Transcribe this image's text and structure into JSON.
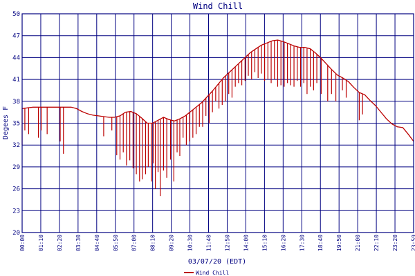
{
  "chart_data": {
    "type": "line",
    "title": "Wind Chill",
    "xlabel": "03/07/20 (EDT)",
    "ylabel": "Degees F",
    "ylim": [
      20,
      50
    ],
    "yticks": [
      "20",
      "23",
      "26",
      "29",
      "32",
      "35",
      "38",
      "41",
      "44",
      "47",
      "50"
    ],
    "xlim": [
      0,
      1440
    ],
    "xticks": [
      "00:00",
      "01:10",
      "02:20",
      "03:30",
      "04:40",
      "05:50",
      "07:00",
      "08:10",
      "09:20",
      "10:30",
      "11:40",
      "12:50",
      "14:00",
      "15:10",
      "16:20",
      "17:30",
      "18:40",
      "19:50",
      "21:00",
      "22:10",
      "23:20",
      "23:59"
    ],
    "grid": true,
    "legend_position": "bottom-center",
    "colors": {
      "series": "#bb0000",
      "grid": "#000080",
      "text": "#000080"
    },
    "series": [
      {
        "name": "Wind Chill",
        "x": [
          0,
          20,
          40,
          60,
          80,
          100,
          120,
          140,
          160,
          180,
          200,
          220,
          240,
          260,
          280,
          300,
          320,
          340,
          360,
          380,
          400,
          420,
          440,
          460,
          480,
          500,
          520,
          540,
          560,
          580,
          600,
          620,
          640,
          660,
          680,
          700,
          720,
          740,
          760,
          780,
          800,
          820,
          840,
          860,
          880,
          900,
          920,
          940,
          960,
          980,
          1000,
          1020,
          1040,
          1060,
          1080,
          1100,
          1120,
          1140,
          1160,
          1180,
          1200,
          1220,
          1240,
          1260,
          1280,
          1300,
          1320,
          1340,
          1360,
          1380,
          1400,
          1420,
          1440
        ],
        "values": [
          37.0,
          37.1,
          37.2,
          37.2,
          37.2,
          37.2,
          37.2,
          37.2,
          37.2,
          37.2,
          37.0,
          36.6,
          36.3,
          36.1,
          36.0,
          35.9,
          35.8,
          35.8,
          36.0,
          36.5,
          36.6,
          36.3,
          35.7,
          35.0,
          35.0,
          35.4,
          35.8,
          35.5,
          35.3,
          35.6,
          36.0,
          36.6,
          37.2,
          37.8,
          38.6,
          39.4,
          40.3,
          41.2,
          41.9,
          42.6,
          43.3,
          44.0,
          44.7,
          45.2,
          45.7,
          46.0,
          46.3,
          46.4,
          46.2,
          45.9,
          45.6,
          45.4,
          45.4,
          45.2,
          44.6,
          43.9,
          43.1,
          42.3,
          41.6,
          41.2,
          40.7,
          39.9,
          39.2,
          38.9,
          38.1,
          37.4,
          36.5,
          35.6,
          34.9,
          34.5,
          34.4,
          33.5,
          32.5
        ],
        "dips": [
          [
            0,
            32.0
          ],
          [
            10,
            34.0
          ],
          [
            24,
            33.5
          ],
          [
            60,
            33.0
          ],
          [
            70,
            34.0
          ],
          [
            92,
            33.5
          ],
          [
            140,
            32.5
          ],
          [
            152,
            30.8
          ],
          [
            300,
            33.2
          ],
          [
            330,
            34.0
          ],
          [
            348,
            30.6
          ],
          [
            360,
            30.0
          ],
          [
            372,
            31.0
          ],
          [
            384,
            29.2
          ],
          [
            396,
            29.9
          ],
          [
            408,
            28.8
          ],
          [
            420,
            28.0
          ],
          [
            432,
            27.0
          ],
          [
            442,
            27.3
          ],
          [
            454,
            28.0
          ],
          [
            464,
            29.0
          ],
          [
            476,
            27.0
          ],
          [
            482,
            29.5
          ],
          [
            490,
            26.0
          ],
          [
            500,
            28.3
          ],
          [
            508,
            25.0
          ],
          [
            520,
            28.5
          ],
          [
            532,
            27.5
          ],
          [
            546,
            30.0
          ],
          [
            558,
            27.0
          ],
          [
            570,
            31.0
          ],
          [
            580,
            30.5
          ],
          [
            592,
            33.0
          ],
          [
            604,
            32.0
          ],
          [
            616,
            32.5
          ],
          [
            628,
            33.0
          ],
          [
            640,
            33.5
          ],
          [
            652,
            34.5
          ],
          [
            664,
            34.5
          ],
          [
            676,
            36.0
          ],
          [
            688,
            35.0
          ],
          [
            700,
            36.5
          ],
          [
            712,
            38.0
          ],
          [
            724,
            37.0
          ],
          [
            736,
            37.5
          ],
          [
            748,
            38.0
          ],
          [
            760,
            39.0
          ],
          [
            772,
            38.5
          ],
          [
            784,
            40.0
          ],
          [
            796,
            40.5
          ],
          [
            808,
            40.2
          ],
          [
            820,
            40.8
          ],
          [
            832,
            41.5
          ],
          [
            844,
            41.0
          ],
          [
            856,
            42.0
          ],
          [
            868,
            41.2
          ],
          [
            880,
            41.8
          ],
          [
            892,
            40.8
          ],
          [
            904,
            41.0
          ],
          [
            916,
            40.5
          ],
          [
            928,
            41.0
          ],
          [
            940,
            40.0
          ],
          [
            952,
            40.2
          ],
          [
            964,
            40.0
          ],
          [
            976,
            40.5
          ],
          [
            988,
            40.2
          ],
          [
            1000,
            40.0
          ],
          [
            1012,
            40.8
          ],
          [
            1024,
            40.0
          ],
          [
            1036,
            40.5
          ],
          [
            1048,
            39.0
          ],
          [
            1060,
            40.0
          ],
          [
            1072,
            39.5
          ],
          [
            1084,
            40.5
          ],
          [
            1100,
            39.0
          ],
          [
            1124,
            38.0
          ],
          [
            1138,
            39.0
          ],
          [
            1154,
            38.0
          ],
          [
            1178,
            39.5
          ],
          [
            1192,
            38.5
          ],
          [
            1240,
            35.4
          ],
          [
            1252,
            36.2
          ]
        ]
      }
    ]
  }
}
